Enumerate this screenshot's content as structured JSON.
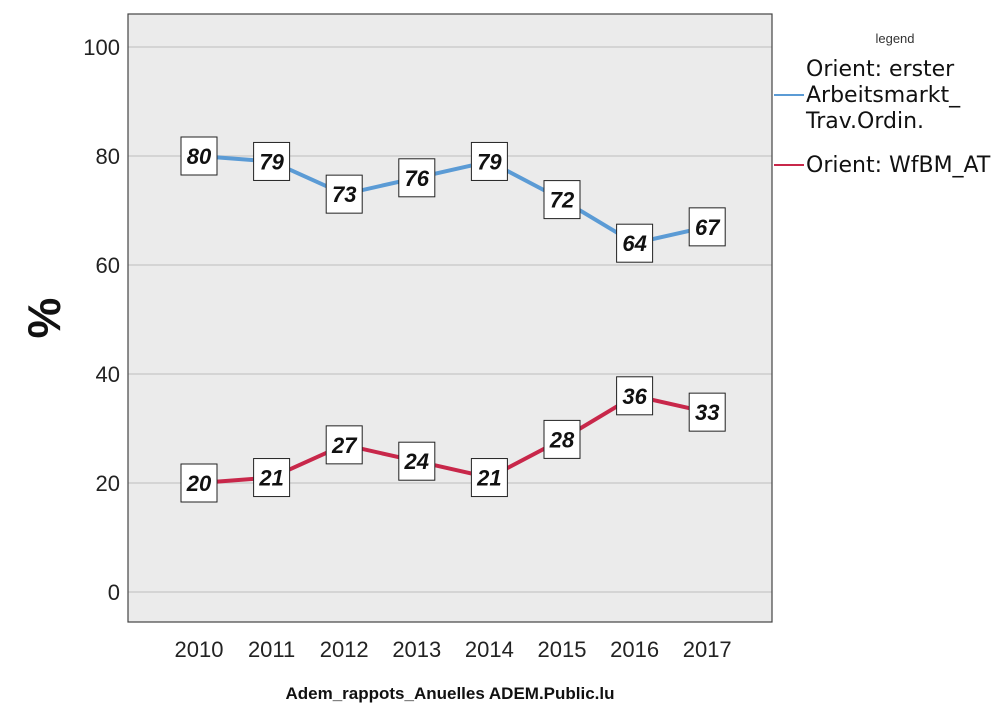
{
  "chart_data": {
    "type": "line",
    "title": "",
    "xlabel": "Adem_rappots_Anuelles ADEM.Public.lu",
    "ylabel": "%",
    "x": [
      "2010",
      "2011",
      "2012",
      "2013",
      "2014",
      "2015",
      "2016",
      "2017"
    ],
    "ylim": [
      0,
      100
    ],
    "yticks": [
      0,
      20,
      40,
      60,
      80,
      100
    ],
    "grid": true,
    "legend": {
      "title": "legend",
      "position": "right",
      "entries": [
        {
          "lines": [
            "Orient: erster",
            "Arbeitsmarkt_",
            "Trav.Ordin."
          ],
          "color": "#5b9bd5"
        },
        {
          "lines": [
            "Orient: WfBM_AT"
          ],
          "color": "#c8274a"
        }
      ]
    },
    "series": [
      {
        "name": "Orient: erster Arbeitsmarkt_ Trav.Ordin.",
        "color": "#5b9bd5",
        "values": [
          80,
          79,
          73,
          76,
          79,
          72,
          64,
          67
        ]
      },
      {
        "name": "Orient: WfBM_AT",
        "color": "#c8274a",
        "values": [
          20,
          21,
          27,
          24,
          21,
          28,
          36,
          33
        ]
      }
    ]
  }
}
